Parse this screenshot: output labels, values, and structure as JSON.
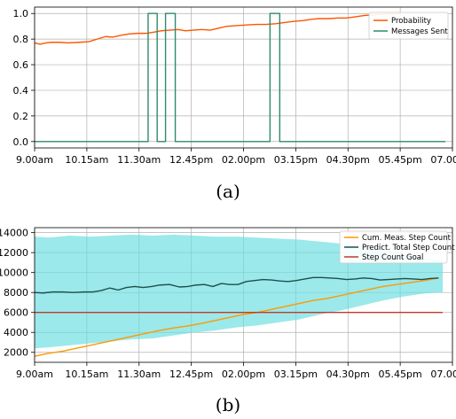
{
  "chart_data": [
    {
      "type": "line",
      "caption": "(a)",
      "title": "",
      "xlabel": "",
      "ylabel": "",
      "x_ticks": [
        "9.00am",
        "10.15am",
        "11.30am",
        "12.45pm",
        "02.00pm",
        "03.15pm",
        "04.30pm",
        "05.45pm",
        "07.00pm"
      ],
      "x_tick_minutes": [
        540,
        615,
        690,
        765,
        840,
        915,
        990,
        1065,
        1140
      ],
      "xlim": [
        540,
        1140
      ],
      "y_ticks": [
        "0.0",
        "0.2",
        "0.4",
        "0.6",
        "0.8",
        "1.0"
      ],
      "y_tick_values": [
        0,
        0.2,
        0.4,
        0.6,
        0.8,
        1.0
      ],
      "ylim": [
        -0.05,
        1.05
      ],
      "grid": true,
      "legend_position": "top-right",
      "series": [
        {
          "name": "Probability",
          "color": "#ff5500",
          "points": [
            [
              540,
              0.77
            ],
            [
              548,
              0.76
            ],
            [
              556,
              0.77
            ],
            [
              564,
              0.775
            ],
            [
              576,
              0.775
            ],
            [
              588,
              0.77
            ],
            [
              604,
              0.775
            ],
            [
              618,
              0.78
            ],
            [
              630,
              0.8
            ],
            [
              642,
              0.82
            ],
            [
              652,
              0.815
            ],
            [
              664,
              0.83
            ],
            [
              676,
              0.84
            ],
            [
              688,
              0.845
            ],
            [
              700,
              0.845
            ],
            [
              712,
              0.855
            ],
            [
              722,
              0.865
            ],
            [
              734,
              0.87
            ],
            [
              746,
              0.875
            ],
            [
              756,
              0.865
            ],
            [
              768,
              0.87
            ],
            [
              780,
              0.875
            ],
            [
              792,
              0.87
            ],
            [
              804,
              0.885
            ],
            [
              816,
              0.9
            ],
            [
              830,
              0.905
            ],
            [
              844,
              0.91
            ],
            [
              858,
              0.915
            ],
            [
              872,
              0.915
            ],
            [
              886,
              0.92
            ],
            [
              900,
              0.93
            ],
            [
              914,
              0.94
            ],
            [
              926,
              0.945
            ],
            [
              938,
              0.955
            ],
            [
              950,
              0.96
            ],
            [
              962,
              0.96
            ],
            [
              976,
              0.965
            ],
            [
              988,
              0.965
            ],
            [
              1002,
              0.975
            ],
            [
              1014,
              0.985
            ],
            [
              1028,
              0.99
            ],
            [
              1042,
              0.995
            ],
            [
              1054,
              0.995
            ],
            [
              1066,
              1.0
            ]
          ]
        },
        {
          "name": "Messages Sent",
          "color": "#2e8b6e",
          "points": [
            [
              540,
              0
            ],
            [
              703,
              0
            ],
            [
              703,
              1
            ],
            [
              716,
              1
            ],
            [
              716,
              0
            ],
            [
              728,
              0
            ],
            [
              728,
              1
            ],
            [
              742,
              1
            ],
            [
              742,
              0
            ],
            [
              878,
              0
            ],
            [
              878,
              1
            ],
            [
              892,
              1
            ],
            [
              892,
              0
            ],
            [
              1130,
              0
            ]
          ]
        }
      ]
    },
    {
      "type": "area",
      "caption": "(b)",
      "title": "",
      "xlabel": "",
      "ylabel": "",
      "x_ticks": [
        "9.00am",
        "10.15am",
        "11.30am",
        "12.45pm",
        "02.00pm",
        "03.15pm",
        "04.30pm",
        "05.45pm",
        "07.00pm"
      ],
      "x_tick_minutes": [
        540,
        615,
        690,
        765,
        840,
        915,
        990,
        1065,
        1140
      ],
      "xlim": [
        540,
        1140
      ],
      "y_ticks": [
        "2000",
        "4000",
        "6000",
        "8000",
        "10000",
        "12000",
        "14000"
      ],
      "y_tick_values": [
        2000,
        4000,
        6000,
        8000,
        10000,
        12000,
        14000
      ],
      "ylim": [
        1000,
        14500
      ],
      "grid": true,
      "legend_position": "top-right",
      "band": {
        "color": "#66dde0",
        "upper": [
          [
            540,
            13600
          ],
          [
            560,
            13500
          ],
          [
            590,
            13700
          ],
          [
            620,
            13600
          ],
          [
            650,
            13700
          ],
          [
            680,
            13800
          ],
          [
            710,
            13700
          ],
          [
            740,
            13800
          ],
          [
            770,
            13700
          ],
          [
            800,
            13600
          ],
          [
            830,
            13600
          ],
          [
            860,
            13500
          ],
          [
            890,
            13400
          ],
          [
            920,
            13300
          ],
          [
            950,
            13100
          ],
          [
            980,
            12900
          ],
          [
            1010,
            12600
          ],
          [
            1040,
            12300
          ],
          [
            1070,
            11800
          ],
          [
            1100,
            11400
          ],
          [
            1126,
            11200
          ]
        ],
        "lower": [
          [
            540,
            2400
          ],
          [
            560,
            2500
          ],
          [
            590,
            2700
          ],
          [
            620,
            2900
          ],
          [
            650,
            3100
          ],
          [
            680,
            3300
          ],
          [
            710,
            3400
          ],
          [
            740,
            3700
          ],
          [
            770,
            4000
          ],
          [
            800,
            4200
          ],
          [
            830,
            4500
          ],
          [
            860,
            4700
          ],
          [
            890,
            5000
          ],
          [
            920,
            5300
          ],
          [
            950,
            5800
          ],
          [
            980,
            6200
          ],
          [
            1010,
            6700
          ],
          [
            1040,
            7200
          ],
          [
            1070,
            7600
          ],
          [
            1100,
            7900
          ],
          [
            1126,
            8000
          ]
        ]
      },
      "series": [
        {
          "name": "Cum. Meas. Step Count",
          "color": "#ff9900",
          "points": [
            [
              540,
              1600
            ],
            [
              560,
              1900
            ],
            [
              580,
              2100
            ],
            [
              600,
              2400
            ],
            [
              620,
              2700
            ],
            [
              640,
              3000
            ],
            [
              660,
              3300
            ],
            [
              680,
              3600
            ],
            [
              700,
              3900
            ],
            [
              720,
              4200
            ],
            [
              740,
              4450
            ],
            [
              760,
              4650
            ],
            [
              780,
              4900
            ],
            [
              800,
              5200
            ],
            [
              820,
              5500
            ],
            [
              840,
              5800
            ],
            [
              860,
              6000
            ],
            [
              880,
              6300
            ],
            [
              900,
              6600
            ],
            [
              920,
              6900
            ],
            [
              940,
              7200
            ],
            [
              960,
              7400
            ],
            [
              980,
              7700
            ],
            [
              1000,
              8000
            ],
            [
              1020,
              8300
            ],
            [
              1040,
              8600
            ],
            [
              1060,
              8800
            ],
            [
              1080,
              9000
            ],
            [
              1100,
              9200
            ],
            [
              1120,
              9450
            ]
          ]
        },
        {
          "name": "Predict. Total Step Count",
          "color": "#1f4e4e",
          "points": [
            [
              540,
              8000
            ],
            [
              552,
              7950
            ],
            [
              566,
              8050
            ],
            [
              580,
              8050
            ],
            [
              596,
              8000
            ],
            [
              610,
              8050
            ],
            [
              624,
              8050
            ],
            [
              636,
              8200
            ],
            [
              648,
              8450
            ],
            [
              660,
              8250
            ],
            [
              672,
              8500
            ],
            [
              684,
              8600
            ],
            [
              696,
              8500
            ],
            [
              708,
              8600
            ],
            [
              720,
              8750
            ],
            [
              734,
              8800
            ],
            [
              748,
              8550
            ],
            [
              760,
              8600
            ],
            [
              772,
              8750
            ],
            [
              784,
              8800
            ],
            [
              796,
              8600
            ],
            [
              808,
              8900
            ],
            [
              820,
              8800
            ],
            [
              832,
              8800
            ],
            [
              844,
              9100
            ],
            [
              856,
              9200
            ],
            [
              868,
              9300
            ],
            [
              880,
              9250
            ],
            [
              892,
              9150
            ],
            [
              904,
              9100
            ],
            [
              916,
              9200
            ],
            [
              928,
              9350
            ],
            [
              940,
              9500
            ],
            [
              952,
              9500
            ],
            [
              964,
              9450
            ],
            [
              976,
              9400
            ],
            [
              988,
              9300
            ],
            [
              1000,
              9350
            ],
            [
              1012,
              9450
            ],
            [
              1024,
              9400
            ],
            [
              1036,
              9250
            ],
            [
              1048,
              9300
            ],
            [
              1060,
              9350
            ],
            [
              1072,
              9400
            ],
            [
              1084,
              9350
            ],
            [
              1096,
              9300
            ],
            [
              1108,
              9400
            ],
            [
              1120,
              9450
            ]
          ]
        },
        {
          "name": "Step Count Goal",
          "color": "#c0392b",
          "points": [
            [
              540,
              6000
            ],
            [
              1126,
              6000
            ]
          ]
        }
      ]
    }
  ]
}
